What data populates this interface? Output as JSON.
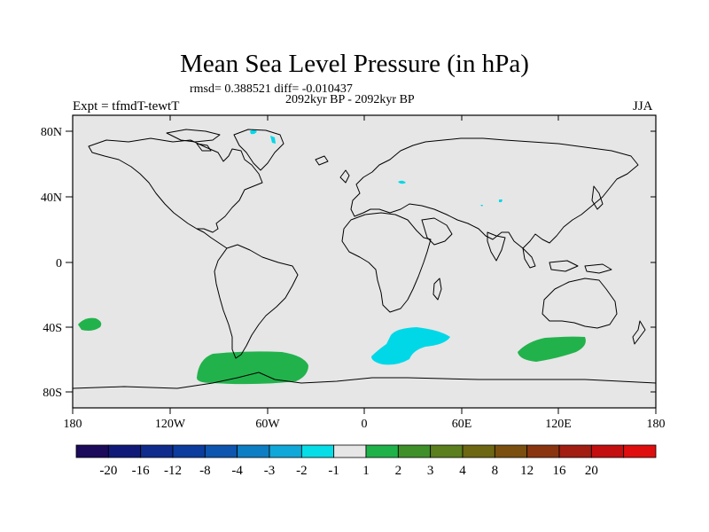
{
  "map": {
    "title": "Mean Sea Level Pressure (in hPa)",
    "stats": "rmsd= 0.388521 diff= -0.010437",
    "period": "2092kyr BP - 2092kyr BP",
    "experiment": "Expt = tfmdT-tewtT",
    "season": "JJA",
    "lat_labels": [
      "80N",
      "40N",
      "0",
      "40S",
      "80S"
    ],
    "lon_labels": [
      "180",
      "120W",
      "60W",
      "0",
      "60E",
      "120E",
      "180"
    ],
    "colors": {
      "background": "#e6e6e6",
      "land_outline": "#000000",
      "pos_small": "#22b24c",
      "neg_small": "#00d8e8"
    }
  },
  "colorbar": {
    "colors": [
      "#1c0a5a",
      "#0f1a78",
      "#0f2b8c",
      "#0b3c9e",
      "#0d55ae",
      "#0e7ec4",
      "#10a8d8",
      "#06dde6",
      "#e6e6e6",
      "#1fb24a",
      "#3f8f2a",
      "#5b7e1e",
      "#6d6612",
      "#7a4f10",
      "#8a3510",
      "#a21d12",
      "#c40f10",
      "#e00f0f"
    ],
    "labels": [
      "-20",
      "-16",
      "-12",
      "-8",
      "-4",
      "-3",
      "-2",
      "-1",
      "1",
      "2",
      "3",
      "4",
      "8",
      "12",
      "16",
      "20"
    ]
  }
}
